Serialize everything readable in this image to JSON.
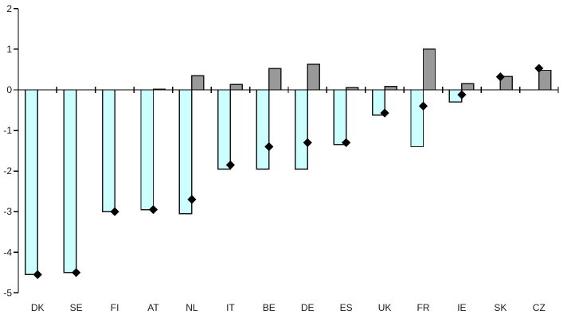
{
  "chart_data": {
    "type": "bar",
    "title": "",
    "xlabel": "",
    "ylabel": "",
    "categories": [
      "DK",
      "SE",
      "FI",
      "AT",
      "NL",
      "IT",
      "BE",
      "DE",
      "ES",
      "UK",
      "FR",
      "IE",
      "SK",
      "CZ"
    ],
    "series": [
      {
        "name": "light-cyan-bars",
        "color": "#CCFFFF",
        "values": [
          -4.55,
          -4.5,
          -3.0,
          -2.95,
          -3.05,
          -1.95,
          -1.95,
          -1.95,
          -1.35,
          -0.62,
          -1.4,
          -0.3,
          null,
          null
        ]
      },
      {
        "name": "gray-bars",
        "color": "#999999",
        "values": [
          null,
          null,
          null,
          0.02,
          0.35,
          0.13,
          0.52,
          0.63,
          0.05,
          0.08,
          1.0,
          0.15,
          0.33,
          0.48
        ]
      }
    ],
    "markers": {
      "name": "black-diamonds",
      "shape": "diamond",
      "color": "#000000",
      "values": [
        -4.55,
        -4.5,
        -3.0,
        -2.95,
        -2.7,
        -1.85,
        -1.4,
        -1.3,
        -1.3,
        -0.57,
        -0.4,
        -0.12,
        0.32,
        0.53
      ]
    },
    "ylim": [
      -5,
      2
    ],
    "yticks": [
      2,
      1,
      0,
      -1,
      -2,
      -3,
      -4,
      -5
    ],
    "grid": false,
    "legend_position": "none",
    "axis_color": "#000000",
    "bar_border_color": "#1a1a1a",
    "label_color": "#1a1a1a"
  }
}
